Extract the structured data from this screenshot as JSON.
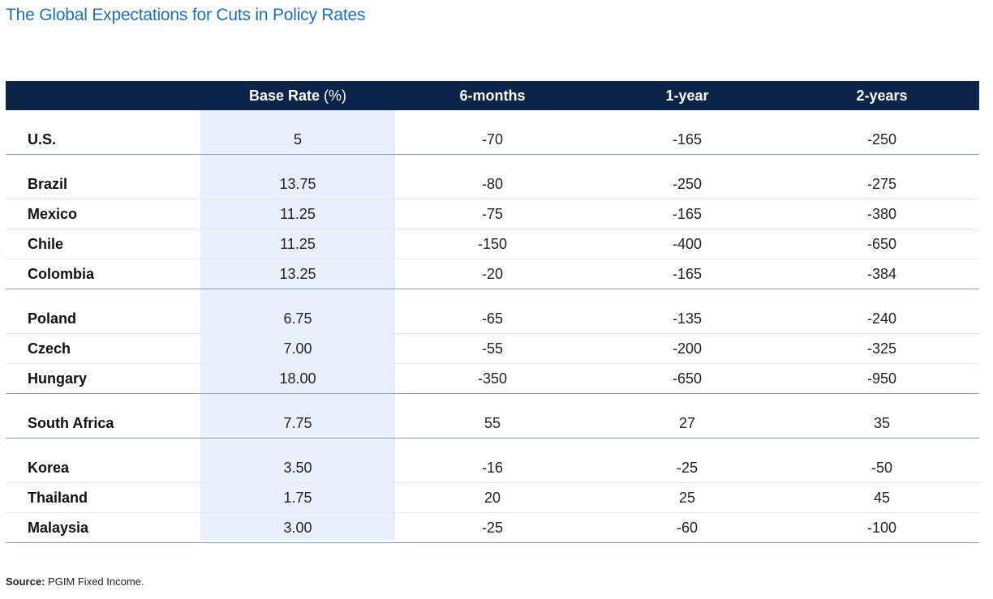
{
  "title": "The Global Expectations for Cuts in Policy Rates",
  "source_label": "Source:",
  "source_text": "PGIM Fixed Income.",
  "chart_data": {
    "type": "table",
    "title": "The Global Expectations for Cuts in Policy Rates",
    "columns": [
      "",
      "Base Rate (%)",
      "6-months",
      "1-year",
      "2-years"
    ],
    "header": {
      "base_rate": "Base Rate",
      "base_rate_unit": "(%)",
      "six_months": "6-months",
      "one_year": "1-year",
      "two_years": "2-years"
    },
    "groups": [
      {
        "rows": [
          {
            "country": "U.S.",
            "base_rate": "5",
            "m6": "-70",
            "y1": "-165",
            "y2": "-250"
          }
        ]
      },
      {
        "rows": [
          {
            "country": "Brazil",
            "base_rate": "13.75",
            "m6": "-80",
            "y1": "-250",
            "y2": "-275"
          },
          {
            "country": "Mexico",
            "base_rate": "11.25",
            "m6": "-75",
            "y1": "-165",
            "y2": "-380"
          },
          {
            "country": "Chile",
            "base_rate": "11.25",
            "m6": "-150",
            "y1": "-400",
            "y2": "-650"
          },
          {
            "country": "Colombia",
            "base_rate": "13.25",
            "m6": "-20",
            "y1": "-165",
            "y2": "-384"
          }
        ]
      },
      {
        "rows": [
          {
            "country": "Poland",
            "base_rate": "6.75",
            "m6": "-65",
            "y1": "-135",
            "y2": "-240"
          },
          {
            "country": "Czech",
            "base_rate": "7.00",
            "m6": "-55",
            "y1": "-200",
            "y2": "-325"
          },
          {
            "country": "Hungary",
            "base_rate": "18.00",
            "m6": "-350",
            "y1": "-650",
            "y2": "-950"
          }
        ]
      },
      {
        "rows": [
          {
            "country": "South Africa",
            "base_rate": "7.75",
            "m6": "55",
            "y1": "27",
            "y2": "35"
          }
        ]
      },
      {
        "rows": [
          {
            "country": "Korea",
            "base_rate": "3.50",
            "m6": "-16",
            "y1": "-25",
            "y2": "-50"
          },
          {
            "country": "Thailand",
            "base_rate": "1.75",
            "m6": "20",
            "y1": "25",
            "y2": "45"
          },
          {
            "country": "Malaysia",
            "base_rate": "3.00",
            "m6": "-25",
            "y1": "-60",
            "y2": "-100"
          }
        ]
      }
    ]
  },
  "colors": {
    "title": "#1f6fb5",
    "header_bg": "#0c2448",
    "highlight_col": "#e8f1fb"
  }
}
